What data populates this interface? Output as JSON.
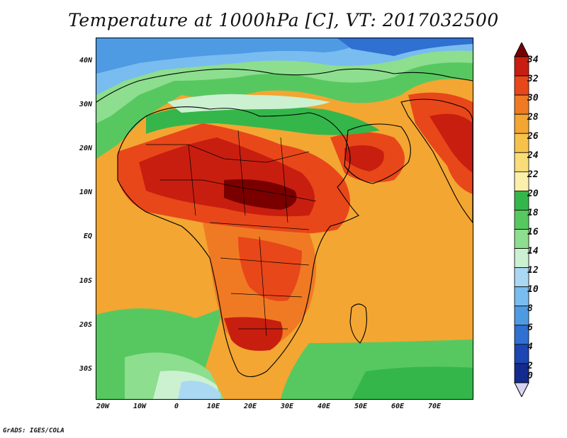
{
  "title": "Temperature at 1000hPa [C], VT: 2017032500",
  "credit": "GrADS: IGES/COLA",
  "map": {
    "lat_ticks": [
      "40N",
      "30N",
      "20N",
      "10N",
      "EQ",
      "10S",
      "20S",
      "30S"
    ],
    "lon_ticks": [
      "20W",
      "10W",
      "0",
      "10E",
      "20E",
      "30E",
      "40E",
      "50E",
      "60E",
      "70E"
    ],
    "lon_range": [
      -22,
      80
    ],
    "lat_range": [
      -36,
      44
    ]
  },
  "colorbar": {
    "labels": [
      "34",
      "32",
      "30",
      "28",
      "26",
      "24",
      "22",
      "20",
      "18",
      "16",
      "14",
      "12",
      "10",
      "8",
      "6",
      "4",
      "2",
      "0"
    ],
    "colors": [
      "#7a0000",
      "#c81e10",
      "#e8471a",
      "#f07a24",
      "#f3a632",
      "#f6c24a",
      "#f8dd78",
      "#fbf0aa",
      "#35b64b",
      "#57c860",
      "#8dde8e",
      "#cbf1d1",
      "#aad8f3",
      "#79bcf0",
      "#4e9be4",
      "#2f70d1",
      "#1b46b3",
      "#132a8e",
      "#0a0e5c"
    ]
  }
}
